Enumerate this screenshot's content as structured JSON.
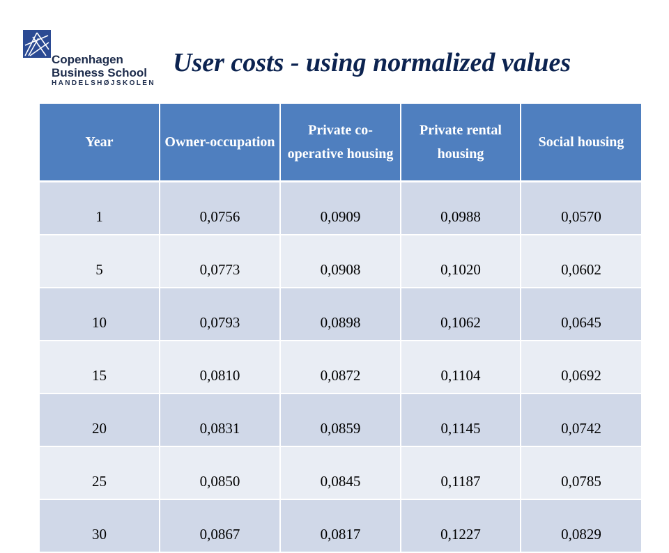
{
  "logo": {
    "line1": "Copenhagen",
    "line2": "Business School",
    "line3": "HANDELSHØJSKOLEN",
    "icon": "cbs-logo-mark",
    "color": "#2b4a93"
  },
  "title": "User costs - using normalized values",
  "table": {
    "header_color": "#4f7fbf",
    "row_colors": [
      "#d0d8e8",
      "#e9edf4"
    ],
    "columns": [
      "Year",
      "Owner-occupation",
      "Private co-operative housing",
      "Private rental housing",
      "Social housing"
    ],
    "rows": [
      [
        "1",
        "0,0756",
        "0,0909",
        "0,0988",
        "0,0570"
      ],
      [
        "5",
        "0,0773",
        "0,0908",
        "0,1020",
        "0,0602"
      ],
      [
        "10",
        "0,0793",
        "0,0898",
        "0,1062",
        "0,0645"
      ],
      [
        "15",
        "0,0810",
        "0,0872",
        "0,1104",
        "0,0692"
      ],
      [
        "20",
        "0,0831",
        "0,0859",
        "0,1145",
        "0,0742"
      ],
      [
        "25",
        "0,0850",
        "0,0845",
        "0,1187",
        "0,0785"
      ],
      [
        "30",
        "0,0867",
        "0,0817",
        "0,1227",
        "0,0829"
      ]
    ]
  }
}
